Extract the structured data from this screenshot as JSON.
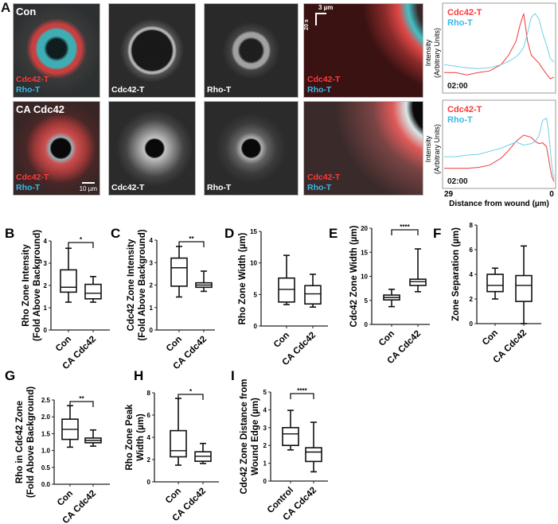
{
  "panel_a": {
    "label": "A",
    "rows": [
      {
        "title": "Con",
        "merge": {
          "cdc42": "Cdc42-T",
          "rho": "Rho-T"
        },
        "cdc42_channel": "Cdc42-T",
        "rho_channel": "Rho-T",
        "kymo": {
          "cdc42": "Cdc42-T",
          "rho": "Rho-T",
          "scale_x": "3 µm",
          "scale_y": "20 s"
        }
      },
      {
        "title": "CA Cdc42",
        "merge": {
          "cdc42": "Cdc42-T",
          "rho": "Rho-T"
        },
        "cdc42_channel": "Cdc42-T",
        "rho_channel": "Rho-T",
        "scale_bar": "10 µm",
        "kymo": {
          "cdc42": "Cdc42-T",
          "rho": "Rho-T"
        }
      }
    ],
    "colors": {
      "cdc42": "#ff3a3a",
      "rho": "#3ab8e8"
    }
  },
  "chart_data": [
    {
      "id": "profile-con",
      "type": "line",
      "ylabel": [
        "Intensity",
        "(Arbitrary Units)"
      ],
      "time": "02:00",
      "legend": [
        "Cdc42-T",
        "Rho-T"
      ],
      "x": [
        29,
        26,
        23,
        20,
        17,
        14,
        12,
        10,
        9,
        8,
        7,
        6,
        5,
        4,
        3,
        2,
        1,
        0
      ],
      "series": [
        {
          "name": "Cdc42-T",
          "values": [
            0.2,
            0.2,
            0.17,
            0.2,
            0.22,
            0.3,
            0.42,
            0.6,
            0.8,
            0.95,
            0.6,
            0.42,
            0.37,
            0.32,
            0.25,
            0.18,
            0.12,
            0.14
          ]
        },
        {
          "name": "Rho-T",
          "values": [
            0.3,
            0.28,
            0.26,
            0.25,
            0.26,
            0.3,
            0.34,
            0.4,
            0.45,
            0.52,
            0.7,
            0.9,
            0.95,
            0.88,
            0.7,
            0.55,
            0.38,
            0.33
          ]
        }
      ]
    },
    {
      "id": "profile-ca",
      "type": "line",
      "ylabel": [
        "Intensity",
        "(Arbitrary Units)"
      ],
      "time": "02:00",
      "legend": [
        "Cdc42-T",
        "Rho-T"
      ],
      "xlabel": "Distance from wound (µm)",
      "xticks": [
        "29",
        "0"
      ],
      "x": [
        29,
        26,
        23,
        20,
        17,
        14,
        12,
        10,
        8,
        6,
        5,
        4,
        3,
        2,
        1.5,
        1,
        0.5,
        0
      ],
      "series": [
        {
          "name": "Cdc42-T",
          "values": [
            0.2,
            0.2,
            0.2,
            0.21,
            0.24,
            0.33,
            0.43,
            0.55,
            0.63,
            0.6,
            0.55,
            0.52,
            0.53,
            0.48,
            0.35,
            0.2,
            0.08,
            0.03
          ]
        },
        {
          "name": "Rho-T",
          "values": [
            0.35,
            0.35,
            0.37,
            0.38,
            0.42,
            0.46,
            0.5,
            0.54,
            0.5,
            0.52,
            0.55,
            0.62,
            0.82,
            0.85,
            0.7,
            0.45,
            0.2,
            0.06
          ]
        }
      ]
    },
    {
      "id": "B",
      "label": "B",
      "type": "box",
      "ylabel": [
        "Rho Zone Intensity",
        "(Fold Above Background)"
      ],
      "ylim": [
        0,
        4
      ],
      "yticks": [
        "0",
        "1",
        "2",
        "3",
        "4"
      ],
      "categories": [
        "Con",
        "CA Cdc42"
      ],
      "significance": "*",
      "boxes": [
        {
          "min": 1.25,
          "q1": 1.7,
          "median": 1.92,
          "q3": 2.7,
          "max": 3.67
        },
        {
          "min": 1.25,
          "q1": 1.4,
          "median": 1.65,
          "q3": 2.05,
          "max": 2.4
        }
      ]
    },
    {
      "id": "C",
      "label": "C",
      "type": "box",
      "ylabel": [
        "Cdc42 Zone Intensity",
        "(Fold Above Background)"
      ],
      "ylim": [
        0,
        4
      ],
      "yticks": [
        "0",
        "1",
        "2",
        "3",
        "4"
      ],
      "categories": [
        "Con",
        "CA Cdc42"
      ],
      "significance": "**",
      "boxes": [
        {
          "min": 1.47,
          "q1": 1.95,
          "median": 2.77,
          "q3": 3.2,
          "max": 3.72
        },
        {
          "min": 1.72,
          "q1": 1.9,
          "median": 2.0,
          "q3": 2.1,
          "max": 2.62
        }
      ]
    },
    {
      "id": "D",
      "label": "D",
      "type": "box",
      "ylabel": [
        "Rho Zone Width (µm)"
      ],
      "ylim": [
        0,
        15
      ],
      "yticks": [
        "0",
        "5",
        "10",
        "15"
      ],
      "categories": [
        "Con",
        "CA Cdc42"
      ],
      "significance": "",
      "boxes": [
        {
          "min": 3.4,
          "q1": 3.8,
          "median": 5.8,
          "q3": 7.6,
          "max": 11.2
        },
        {
          "min": 3.0,
          "q1": 3.5,
          "median": 5.1,
          "q3": 6.4,
          "max": 8.2
        }
      ]
    },
    {
      "id": "E",
      "label": "E",
      "type": "box",
      "ylabel": [
        "Cdc42 Zone Width (µm)"
      ],
      "ylim": [
        0,
        20
      ],
      "yticks": [
        "0",
        "5",
        "10",
        "15",
        "20"
      ],
      "categories": [
        "Con",
        "CA Cdc42"
      ],
      "significance": "****",
      "boxes": [
        {
          "min": 3.7,
          "q1": 5.1,
          "median": 5.6,
          "q3": 6.1,
          "max": 7.3
        },
        {
          "min": 6.8,
          "q1": 8.1,
          "median": 8.9,
          "q3": 9.4,
          "max": 15.7
        }
      ]
    },
    {
      "id": "F",
      "label": "F",
      "type": "box",
      "ylabel": [
        "Zone Separation (µm)"
      ],
      "ylim": [
        0,
        8
      ],
      "yticks": [
        "0",
        "2",
        "4",
        "6",
        "8"
      ],
      "categories": [
        "Con",
        "CA Cdc42"
      ],
      "significance": "",
      "boxes": [
        {
          "min": 2.0,
          "q1": 2.6,
          "median": 3.1,
          "q3": 4.0,
          "max": 4.5
        },
        {
          "min": 0.0,
          "q1": 1.8,
          "median": 3.1,
          "q3": 3.9,
          "max": 6.3
        }
      ]
    },
    {
      "id": "G",
      "label": "G",
      "type": "box",
      "ylabel": [
        "Rho in Cdc42 Zone",
        "(Fold Above Background)"
      ],
      "ylim": [
        0,
        2.5
      ],
      "yticks": [
        "0.0",
        "0.5",
        "1.0",
        "1.5",
        "2.0",
        "2.5"
      ],
      "categories": [
        "Con",
        "CA Cdc42"
      ],
      "significance": "**",
      "boxes": [
        {
          "min": 1.1,
          "q1": 1.33,
          "median": 1.63,
          "q3": 1.93,
          "max": 2.33
        },
        {
          "min": 1.13,
          "q1": 1.23,
          "median": 1.3,
          "q3": 1.37,
          "max": 1.61
        }
      ]
    },
    {
      "id": "H",
      "label": "H",
      "type": "box",
      "ylabel": [
        "Rho Zone Peak",
        "Width (µm)"
      ],
      "ylim": [
        0,
        8
      ],
      "yticks": [
        "0",
        "2",
        "4",
        "6",
        "8"
      ],
      "categories": [
        "Con",
        "CA Cdc42"
      ],
      "significance": "*",
      "boxes": [
        {
          "min": 1.5,
          "q1": 2.25,
          "median": 2.8,
          "q3": 4.6,
          "max": 7.5
        },
        {
          "min": 1.65,
          "q1": 1.85,
          "median": 2.3,
          "q3": 2.7,
          "max": 3.45
        }
      ]
    },
    {
      "id": "I",
      "label": "I",
      "type": "box",
      "ylabel": [
        "Cdc42 Zone Distance from",
        "Wound Edge (µm)"
      ],
      "ylim": [
        0,
        5
      ],
      "yticks": [
        "0",
        "1",
        "2",
        "3",
        "4",
        "5"
      ],
      "categories": [
        "Control",
        "CA Cdc42"
      ],
      "significance": "****",
      "boxes": [
        {
          "min": 1.75,
          "q1": 2.0,
          "median": 2.65,
          "q3": 3.0,
          "max": 3.97
        },
        {
          "min": 0.52,
          "q1": 1.1,
          "median": 1.63,
          "q3": 1.87,
          "max": 3.3
        }
      ]
    }
  ]
}
